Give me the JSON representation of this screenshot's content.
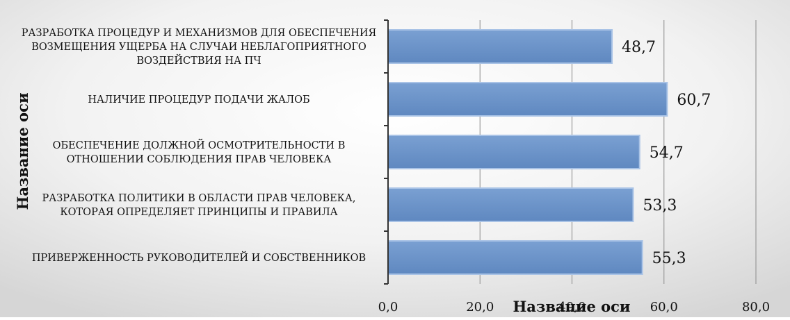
{
  "chart_data": {
    "type": "bar",
    "orientation": "horizontal",
    "categories": [
      [
        "РАЗРАБОТКА ПРОЦЕДУР И МЕХАНИЗМОВ ДЛЯ ОБЕСПЕЧЕНИЯ",
        "ВОЗМЕЩЕНИЯ УЩЕРБА НА СЛУЧАИ НЕБЛАГОПРИЯТНОГО",
        "ВОЗДЕЙСТВИЯ НА ПЧ"
      ],
      [
        "НАЛИЧИЕ ПРОЦЕДУР ПОДАЧИ ЖАЛОБ"
      ],
      [
        "ОБЕСПЕЧЕНИЕ ДОЛЖНОЙ ОСМОТРИТЕЛЬНОСТИ В",
        "ОТНОШЕНИИ СОБЛЮДЕНИЯ ПРАВ ЧЕЛОВЕКА"
      ],
      [
        "РАЗРАБОТКА ПОЛИТИКИ В ОБЛАСТИ ПРАВ ЧЕЛОВЕКА,",
        "КОТОРАЯ ОПРЕДЕЛЯЕТ ПРИНЦИПЫ И ПРАВИЛА"
      ],
      [
        "ПРИВЕРЖЕННОСТЬ РУКОВОДИТЕЛЕЙ И СОБСТВЕННИКОВ"
      ]
    ],
    "values": [
      48.7,
      60.7,
      54.7,
      53.3,
      55.3
    ],
    "value_labels": [
      "48,7",
      "60,7",
      "54,7",
      "53,3",
      "55,3"
    ],
    "xlim": [
      0,
      80
    ],
    "xticks": [
      0,
      20,
      40,
      60,
      80
    ],
    "xtick_labels": [
      "0,0",
      "20,0",
      "40,0",
      "60,0",
      "80,0"
    ],
    "xlabel": "Название оси",
    "ylabel": "Название оси",
    "grid": "vertical",
    "colors": {
      "bar": "#6a93c9",
      "bar_edge": "#a9c3e6",
      "grid": "#9a9a9a",
      "axis": "#333333",
      "text": "#111111",
      "background_light": "#ffffff",
      "background_dark": "#d4d4d4"
    }
  }
}
